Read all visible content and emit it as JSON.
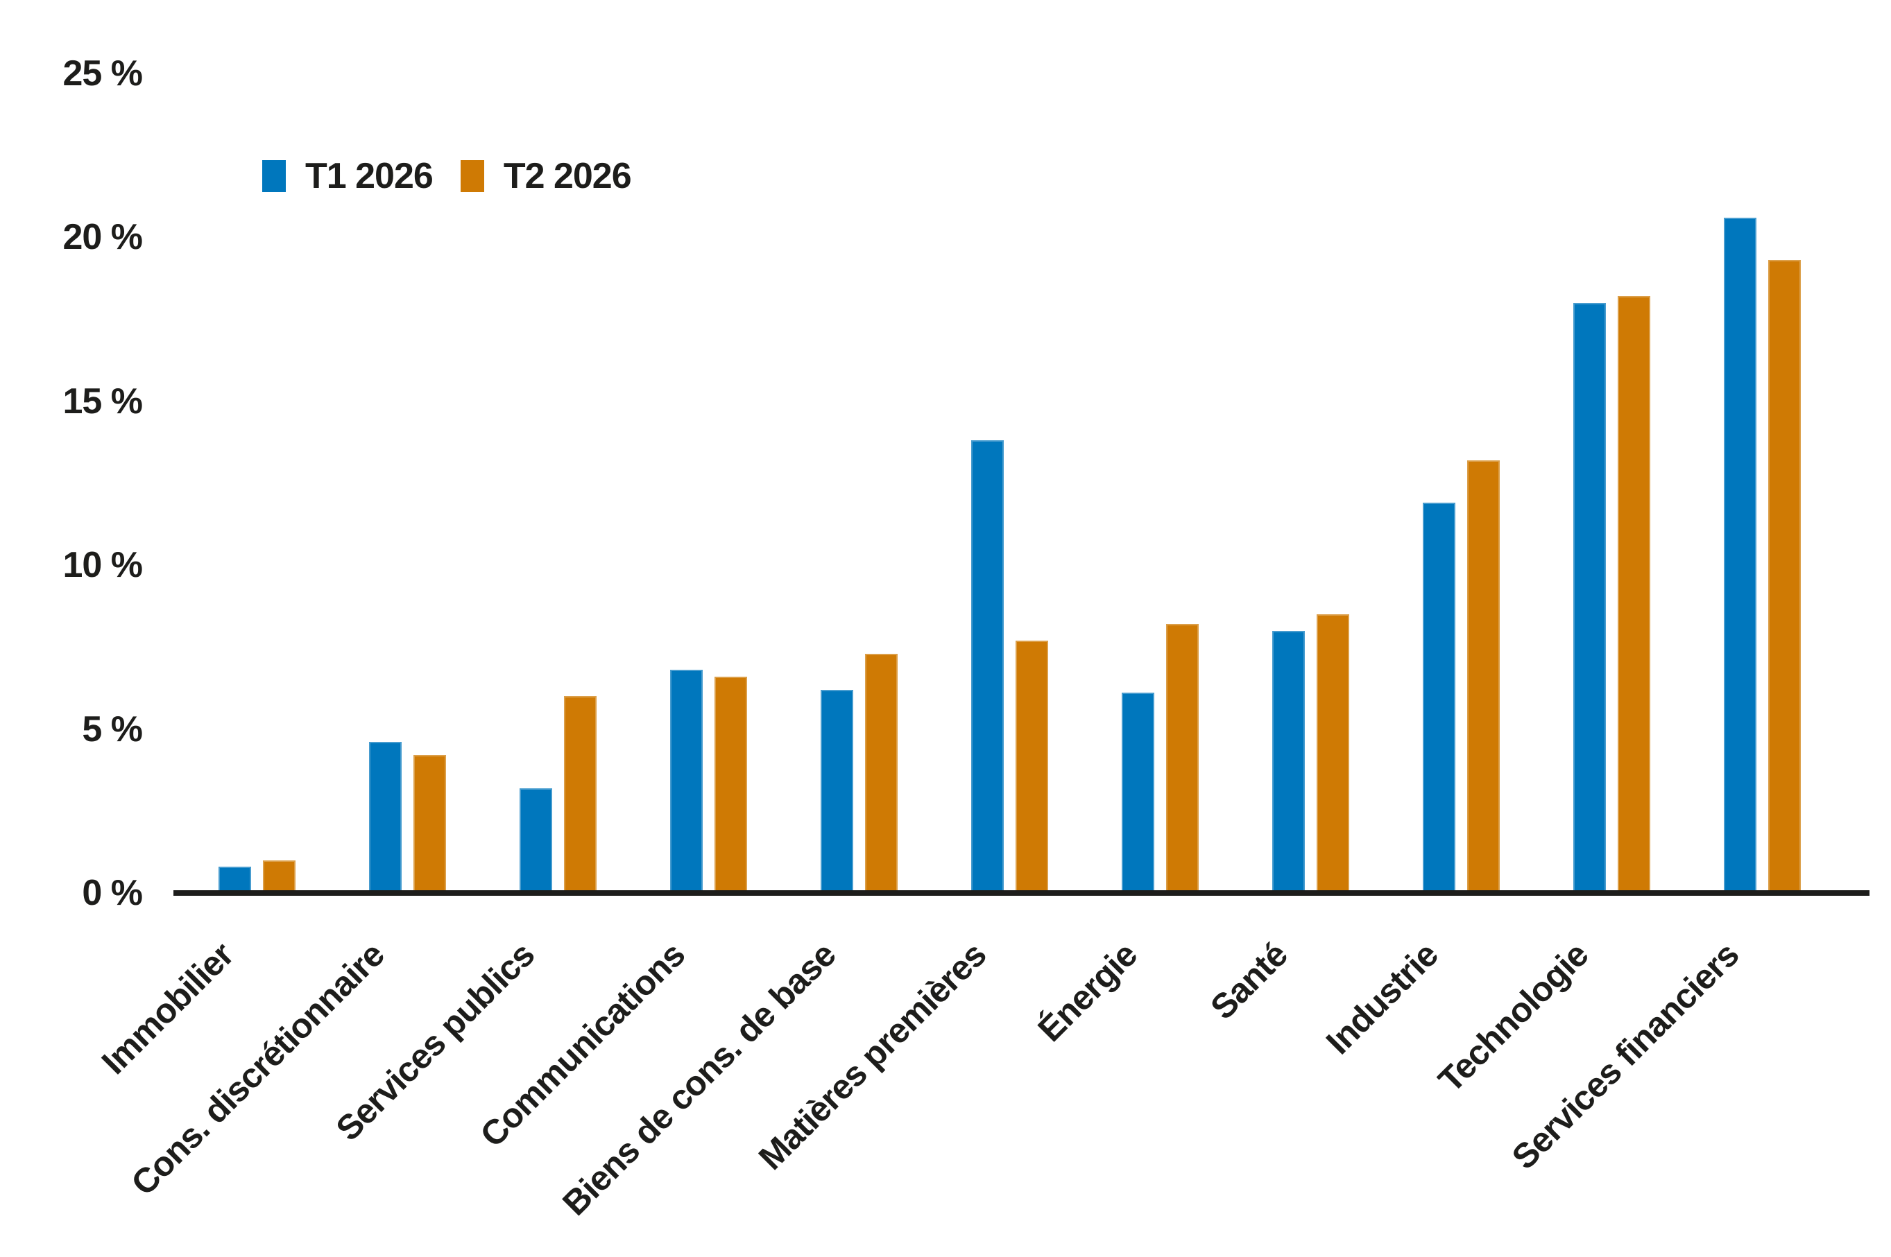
{
  "chart_data": {
    "type": "bar",
    "title": "",
    "xlabel": "",
    "ylabel": "",
    "categories": [
      "Immobilier",
      "Cons. discrétionnaire",
      "Services publics",
      "Communications",
      "Biens de cons. de base",
      "Matières premières",
      "Énergie",
      "Santé",
      "Industrie",
      "Technologie",
      "Services financiers"
    ],
    "series": [
      {
        "name": "T1 2026",
        "color": "#0077BD",
        "values": [
          0.8,
          4.6,
          3.2,
          6.8,
          6.2,
          13.8,
          6.1,
          8.0,
          11.9,
          18.0,
          20.6
        ]
      },
      {
        "name": "T2 2026",
        "color": "#CF7A04",
        "values": [
          1.0,
          4.2,
          6.0,
          6.6,
          7.3,
          7.7,
          8.2,
          8.5,
          13.2,
          18.2,
          19.3
        ]
      }
    ],
    "ylim": [
      0,
      25
    ],
    "ytick_values": [
      0,
      5,
      10,
      15,
      20,
      25
    ],
    "ytick_labels": [
      "0 %",
      "5 %",
      "10 %",
      "15 %",
      "20 %",
      "25 %"
    ],
    "grid": false,
    "legend_position": "top-left",
    "axis_color": "#1d1d1b",
    "background_color": "#ffffff"
  }
}
